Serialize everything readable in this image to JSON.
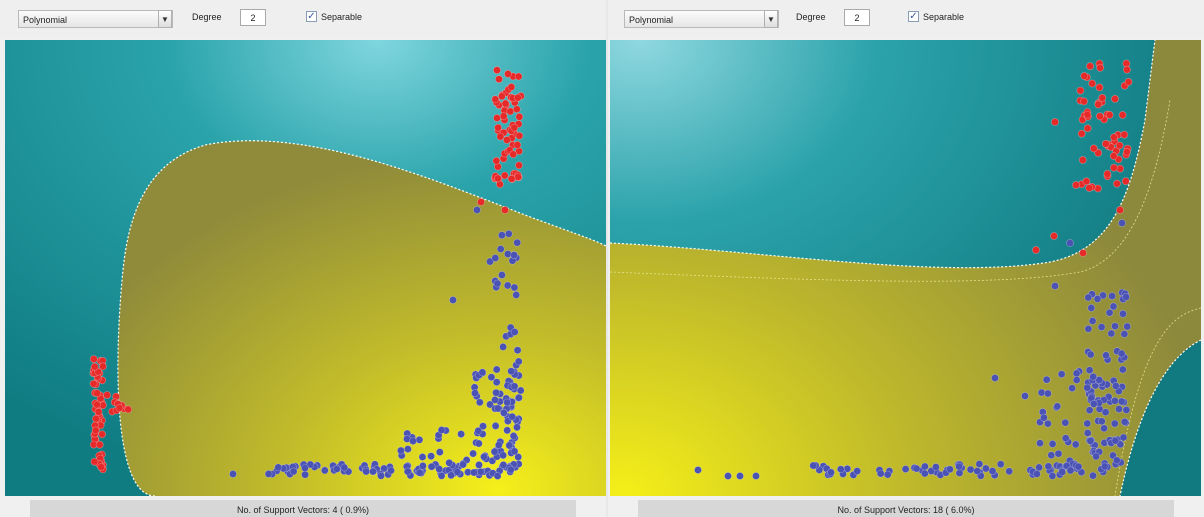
{
  "panels": [
    {
      "kernel_value": "Polynomial",
      "degree_label": "Degree",
      "degree_value": "2",
      "separable_label": "Separable",
      "separable_checked": true,
      "status_text": "No. of Support Vectors: 4 ( 0.9%)"
    },
    {
      "kernel_value": "Polynomial",
      "degree_label": "Degree",
      "degree_value": "2",
      "separable_label": "Separable",
      "separable_checked": true,
      "status_text": "No. of Support Vectors: 18 ( 6.0%)"
    }
  ],
  "icons": {
    "dropdown": "chevron-down-icon",
    "check": "checkmark-icon"
  },
  "colors": {
    "class_a": "#e62a2a",
    "class_b": "#4a52b4",
    "region_a": "#1c8e93",
    "region_b": "#b9b52a",
    "margin": "#ffffff"
  }
}
